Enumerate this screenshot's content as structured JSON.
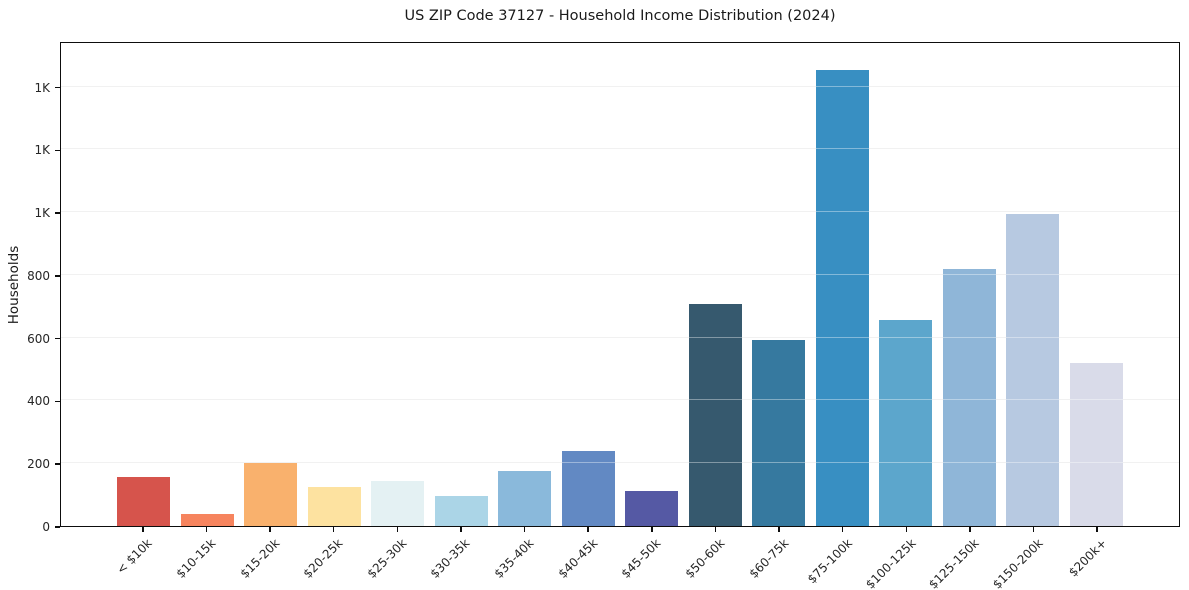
{
  "chart_data": {
    "type": "bar",
    "title": "US ZIP Code 37127 - Household Income Distribution (2024)",
    "xlabel": "",
    "ylabel": "Households",
    "categories": [
      "< $10k",
      "$10-15k",
      "$15-20k",
      "$20-25k",
      "$25-30k",
      "$30-35k",
      "$35-40k",
      "$40-45k",
      "$45-50k",
      "$50-60k",
      "$60-75k",
      "$75-100k",
      "$100-125k",
      "$125-150k",
      "$150-200k",
      "$200k+"
    ],
    "values": [
      156,
      38,
      201,
      125,
      144,
      97,
      175,
      240,
      113,
      710,
      595,
      1460,
      660,
      822,
      998,
      523
    ],
    "bar_colors": [
      "#d6544c",
      "#f6845e",
      "#f9b16d",
      "#fde2a0",
      "#e4f1f3",
      "#abd5e7",
      "#8ab9db",
      "#6289c3",
      "#5559a4",
      "#36596e",
      "#36799f",
      "#388fc2",
      "#5ca6cc",
      "#8fb6d8",
      "#b7c9e1",
      "#d9dbe9"
    ],
    "ylim": [
      0,
      1545
    ],
    "yticks": [
      0,
      200,
      400,
      600,
      800,
      1000,
      1200,
      1400
    ],
    "ytick_labels": [
      "0",
      "200",
      "400",
      "600",
      "800",
      "1K",
      "1K",
      "1K"
    ],
    "grid": "horizontal-only",
    "legend": "none",
    "background_color": "#ffffff",
    "axis_color": "#0d0d0d",
    "gridline_color": "#e9e9e9"
  }
}
